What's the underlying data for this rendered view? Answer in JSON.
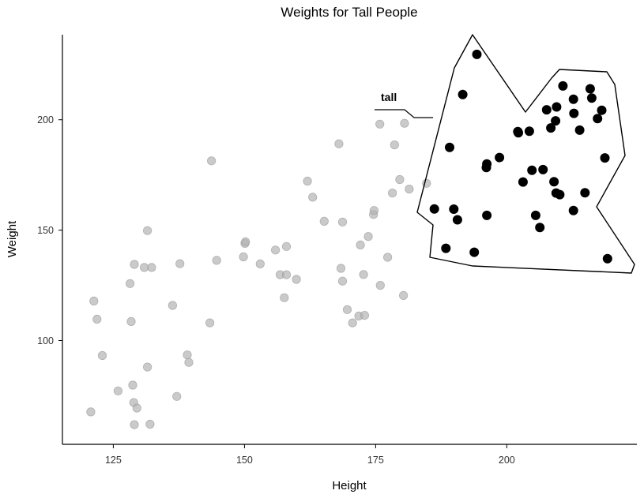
{
  "chart_data": {
    "type": "scatter",
    "title": "Weights for Tall People",
    "xlabel": "Height",
    "ylabel": "Weight",
    "xlim": [
      115.3,
      224.8
    ],
    "ylim": [
      53.0,
      238.5
    ],
    "xticks": [
      125,
      150,
      175,
      200
    ],
    "yticks": [
      100,
      150,
      200
    ],
    "grid": false,
    "legend": "none",
    "colors": {
      "other": "#b3b3b3",
      "tall": "#000000"
    },
    "annotation": {
      "label": "tall"
    },
    "series": [
      {
        "group": "other",
        "points": [
          [
            120.7,
            67.7
          ],
          [
            121.3,
            117.9
          ],
          [
            121.9,
            109.7
          ],
          [
            122.9,
            93.2
          ],
          [
            125.9,
            77.2
          ],
          [
            128.2,
            125.8
          ],
          [
            128.4,
            108.6
          ],
          [
            128.7,
            79.8
          ],
          [
            128.9,
            71.9
          ],
          [
            129.0,
            61.9
          ],
          [
            129.0,
            134.5
          ],
          [
            129.5,
            69.4
          ],
          [
            130.9,
            133.1
          ],
          [
            131.5,
            149.8
          ],
          [
            131.5,
            88.0
          ],
          [
            132.0,
            62.1
          ],
          [
            132.3,
            133.1
          ],
          [
            136.3,
            115.9
          ],
          [
            137.1,
            74.7
          ],
          [
            137.7,
            134.8
          ],
          [
            139.1,
            93.5
          ],
          [
            139.4,
            90.1
          ],
          [
            143.4,
            108.0
          ],
          [
            143.7,
            181.4
          ],
          [
            144.7,
            136.3
          ],
          [
            149.8,
            137.9
          ],
          [
            150.1,
            144.0
          ],
          [
            150.2,
            144.7
          ],
          [
            153.0,
            134.7
          ],
          [
            155.9,
            141.0
          ],
          [
            156.8,
            129.8
          ],
          [
            157.6,
            119.4
          ],
          [
            158.0,
            142.6
          ],
          [
            158.0,
            129.8
          ],
          [
            159.9,
            127.7
          ],
          [
            162.0,
            172.2
          ],
          [
            163.0,
            164.9
          ],
          [
            165.2,
            154.0
          ],
          [
            168.0,
            189.1
          ],
          [
            168.4,
            132.7
          ],
          [
            168.7,
            126.9
          ],
          [
            168.7,
            153.7
          ],
          [
            169.6,
            114.0
          ],
          [
            170.6,
            108.0
          ],
          [
            171.8,
            111.1
          ],
          [
            172.1,
            143.3
          ],
          [
            172.7,
            129.9
          ],
          [
            172.9,
            111.4
          ],
          [
            173.6,
            147.1
          ],
          [
            174.6,
            157.1
          ],
          [
            174.7,
            158.9
          ],
          [
            175.8,
            198.0
          ],
          [
            175.9,
            125.0
          ],
          [
            177.3,
            137.7
          ],
          [
            178.2,
            166.8
          ],
          [
            178.6,
            188.6
          ],
          [
            179.6,
            172.9
          ],
          [
            180.3,
            120.4
          ],
          [
            180.5,
            198.4
          ],
          [
            181.4,
            168.6
          ],
          [
            184.7,
            171.2
          ]
        ]
      },
      {
        "group": "tall",
        "points": [
          [
            186.2,
            159.6
          ],
          [
            188.4,
            141.8
          ],
          [
            189.1,
            187.5
          ],
          [
            189.9,
            159.5
          ],
          [
            190.6,
            154.7
          ],
          [
            191.6,
            211.4
          ],
          [
            193.8,
            140.0
          ],
          [
            194.3,
            229.6
          ],
          [
            196.1,
            178.4
          ],
          [
            196.2,
            180.0
          ],
          [
            196.2,
            156.7
          ],
          [
            198.6,
            182.9
          ],
          [
            202.1,
            194.6
          ],
          [
            202.2,
            194.1
          ],
          [
            203.1,
            171.8
          ],
          [
            204.3,
            194.8
          ],
          [
            204.8,
            177.1
          ],
          [
            205.5,
            156.7
          ],
          [
            206.3,
            151.2
          ],
          [
            206.9,
            177.4
          ],
          [
            207.6,
            204.5
          ],
          [
            208.4,
            196.3
          ],
          [
            209.0,
            171.9
          ],
          [
            209.3,
            199.5
          ],
          [
            209.4,
            166.8
          ],
          [
            209.5,
            205.8
          ],
          [
            210.1,
            166.1
          ],
          [
            210.7,
            215.3
          ],
          [
            212.7,
            209.3
          ],
          [
            212.7,
            158.9
          ],
          [
            212.8,
            202.9
          ],
          [
            213.9,
            195.3
          ],
          [
            214.9,
            166.9
          ],
          [
            215.9,
            214.0
          ],
          [
            216.2,
            209.8
          ],
          [
            217.3,
            200.5
          ],
          [
            218.1,
            204.3
          ],
          [
            218.7,
            182.7
          ],
          [
            219.2,
            137.1
          ]
        ]
      }
    ]
  }
}
